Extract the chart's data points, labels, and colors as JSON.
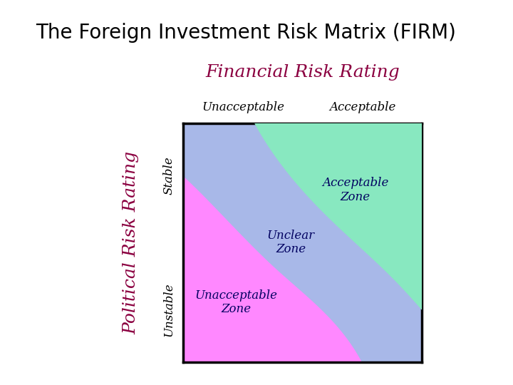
{
  "title": "The Foreign Investment Risk Matrix (FIRM)",
  "title_fontsize": 20,
  "title_color": "#000000",
  "financial_risk_label": "Financial Risk Rating",
  "financial_risk_color": "#8B0040",
  "financial_risk_fontsize": 18,
  "political_risk_label": "Political Risk Rating",
  "political_risk_color": "#8B0040",
  "political_risk_fontsize": 18,
  "unacceptable_label": "Unacceptable",
  "acceptable_label": "Acceptable",
  "stable_label": "Stable",
  "unstable_label": "Unstable",
  "zone_unacceptable": "Unacceptable\nZone",
  "zone_unclear": "Unclear\nZone",
  "zone_acceptable": "Acceptable\nZone",
  "color_unacceptable": "#FF88FF",
  "color_unclear": "#A8B8E8",
  "color_acceptable": "#88E8C0",
  "zone_text_color": "#000060",
  "zone_fontsize": 12,
  "axis_label_fontsize": 12,
  "background_color": "#ffffff",
  "upper_curve_x": [
    0.3,
    0.5,
    0.7,
    0.85,
    1.0
  ],
  "upper_curve_y": [
    1.0,
    0.72,
    0.52,
    0.38,
    0.22
  ],
  "lower_curve_x": [
    0.0,
    0.18,
    0.38,
    0.58,
    0.75
  ],
  "lower_curve_y": [
    0.78,
    0.6,
    0.4,
    0.22,
    0.0
  ]
}
